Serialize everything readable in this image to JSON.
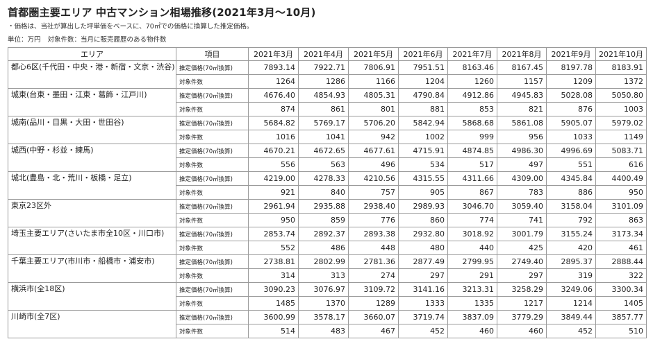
{
  "title": "首都圏主要エリア 中古マンション相場推移(2021年3月～10月)",
  "note": "・価格は、当社が算出した坪単価をベースに、70㎡での価格に換算した推定価格。",
  "unit_label": "単位：万円",
  "count_label": "対象件数：当月に販売履歴のある物件数",
  "columns": {
    "area": "エリア",
    "item": "項目",
    "months": [
      "2021年3月",
      "2021年4月",
      "2021年5月",
      "2021年6月",
      "2021年7月",
      "2021年8月",
      "2021年9月",
      "2021年10月"
    ]
  },
  "row_labels": {
    "price": "推定価格(70㎡換算)",
    "count": "対象件数"
  },
  "rows": [
    {
      "area": "都心6区(千代田・中央・港・新宿・文京・渋谷)",
      "price": [
        "7893.14",
        "7922.71",
        "7806.91",
        "7951.51",
        "8163.46",
        "8167.45",
        "8197.78",
        "8183.91"
      ],
      "count": [
        "1264",
        "1286",
        "1166",
        "1204",
        "1260",
        "1157",
        "1209",
        "1372"
      ]
    },
    {
      "area": "城東(台東・墨田・江東・葛飾・江戸川)",
      "price": [
        "4676.40",
        "4854.93",
        "4805.31",
        "4790.84",
        "4912.86",
        "4945.83",
        "5028.08",
        "5050.80"
      ],
      "count": [
        "874",
        "861",
        "801",
        "881",
        "853",
        "821",
        "876",
        "1003"
      ]
    },
    {
      "area": "城南(品川・目黒・大田・世田谷)",
      "price": [
        "5684.82",
        "5769.17",
        "5706.20",
        "5842.94",
        "5868.68",
        "5861.08",
        "5905.07",
        "5979.02"
      ],
      "count": [
        "1016",
        "1041",
        "942",
        "1002",
        "999",
        "956",
        "1033",
        "1149"
      ]
    },
    {
      "area": "城西(中野・杉並・練馬)",
      "price": [
        "4670.21",
        "4672.65",
        "4677.61",
        "4715.91",
        "4874.85",
        "4986.30",
        "4996.69",
        "5083.71"
      ],
      "count": [
        "556",
        "563",
        "496",
        "534",
        "517",
        "497",
        "551",
        "616"
      ]
    },
    {
      "area": "城北(豊島・北・荒川・板橋・足立)",
      "price": [
        "4219.00",
        "4278.33",
        "4210.56",
        "4315.55",
        "4311.66",
        "4309.00",
        "4345.84",
        "4400.49"
      ],
      "count": [
        "921",
        "840",
        "757",
        "905",
        "867",
        "783",
        "886",
        "950"
      ]
    },
    {
      "area": "東京23区外",
      "price": [
        "2961.94",
        "2935.88",
        "2938.40",
        "2989.93",
        "3046.70",
        "3059.40",
        "3158.04",
        "3101.09"
      ],
      "count": [
        "950",
        "859",
        "776",
        "860",
        "774",
        "741",
        "792",
        "863"
      ]
    },
    {
      "area": "埼玉主要エリア(さいたま市全10区・川口市)",
      "price": [
        "2853.74",
        "2892.37",
        "2893.38",
        "2932.80",
        "3018.92",
        "3001.79",
        "3155.24",
        "3173.34"
      ],
      "count": [
        "552",
        "486",
        "448",
        "480",
        "440",
        "425",
        "420",
        "461"
      ]
    },
    {
      "area": "千葉主要エリア(市川市・船橋市・浦安市)",
      "price": [
        "2738.81",
        "2802.99",
        "2781.36",
        "2877.49",
        "2799.95",
        "2749.40",
        "2895.37",
        "2888.44"
      ],
      "count": [
        "314",
        "313",
        "274",
        "297",
        "291",
        "297",
        "319",
        "322"
      ]
    },
    {
      "area": "横浜市(全18区)",
      "price": [
        "3090.23",
        "3076.97",
        "3109.72",
        "3141.16",
        "3213.31",
        "3258.29",
        "3249.06",
        "3300.34"
      ],
      "count": [
        "1485",
        "1370",
        "1289",
        "1333",
        "1335",
        "1217",
        "1214",
        "1405"
      ]
    },
    {
      "area": "川崎市(全7区)",
      "price": [
        "3600.99",
        "3578.17",
        "3660.07",
        "3719.74",
        "3837.09",
        "3779.29",
        "3849.44",
        "3857.77"
      ],
      "count": [
        "514",
        "483",
        "467",
        "452",
        "460",
        "460",
        "452",
        "510"
      ]
    }
  ]
}
